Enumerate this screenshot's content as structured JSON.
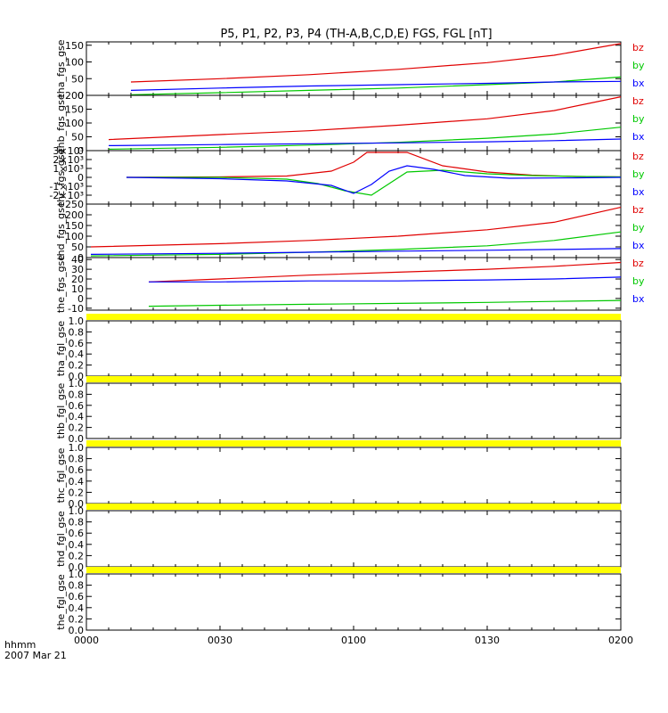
{
  "chart_data": {
    "type": "line",
    "title": "P5, P1, P2, P3, P4 (TH-A,B,C,D,E) FGS, FGL [nT]",
    "x_axis": {
      "range_minutes": [
        0,
        120
      ],
      "ticks": [
        {
          "value": 0,
          "label": "0000"
        },
        {
          "value": 30,
          "label": "0030"
        },
        {
          "value": 60,
          "label": "0100"
        },
        {
          "value": 90,
          "label": "0130"
        },
        {
          "value": 120,
          "label": "0200"
        }
      ],
      "format_label": "hhmm",
      "date_label": "2007 Mar 21"
    },
    "colors": {
      "bx": "#0000ff",
      "by": "#00c800",
      "bz": "#e00000",
      "flag": "#ffff00",
      "axis": "#000000"
    },
    "panels": [
      {
        "ylabel": "tha_fgs_gse",
        "ylim": [
          0,
          160
        ],
        "yticks": [
          {
            "value": 0,
            "label": "0"
          },
          {
            "value": 50,
            "label": "50"
          },
          {
            "value": 100,
            "label": "100"
          },
          {
            "value": 150,
            "label": "150"
          }
        ],
        "legend": [
          "bz",
          "by",
          "bx"
        ],
        "series": [
          {
            "name": "bz",
            "x": [
              10,
              30,
              50,
              70,
              90,
              105,
              120
            ],
            "y": [
              40,
              50,
              62,
              78,
              98,
              120,
              155
            ]
          },
          {
            "name": "by",
            "x": [
              10,
              30,
              50,
              70,
              90,
              105,
              120
            ],
            "y": [
              2,
              8,
              15,
              22,
              32,
              40,
              55
            ]
          },
          {
            "name": "bx",
            "x": [
              10,
              30,
              50,
              70,
              90,
              105,
              120
            ],
            "y": [
              15,
              22,
              28,
              32,
              36,
              40,
              42
            ]
          }
        ]
      },
      {
        "ylabel": "thb_fgs_gse",
        "ylim": [
          0,
          200
        ],
        "yticks": [
          {
            "value": 0,
            "label": "0"
          },
          {
            "value": 50,
            "label": "50"
          },
          {
            "value": 100,
            "label": "100"
          },
          {
            "value": 150,
            "label": "150"
          },
          {
            "value": 200,
            "label": "200"
          }
        ],
        "legend": [
          "bz",
          "by",
          "bx"
        ],
        "series": [
          {
            "name": "bz",
            "x": [
              5,
              30,
              50,
              70,
              90,
              105,
              120
            ],
            "y": [
              40,
              58,
              72,
              92,
              115,
              145,
              195
            ]
          },
          {
            "name": "by",
            "x": [
              5,
              30,
              50,
              70,
              90,
              105,
              120
            ],
            "y": [
              5,
              12,
              20,
              30,
              45,
              60,
              85
            ]
          },
          {
            "name": "bx",
            "x": [
              5,
              30,
              50,
              70,
              90,
              105,
              120
            ],
            "y": [
              18,
              22,
              25,
              28,
              32,
              36,
              42
            ]
          }
        ]
      },
      {
        "ylabel": "thc_fgs_gse",
        "ylim": [
          -3000,
          3000
        ],
        "yticks": [
          {
            "value": -2000,
            "label": "-2×10³"
          },
          {
            "value": -1000,
            "label": "-1×10³"
          },
          {
            "value": 0,
            "label": "0"
          },
          {
            "value": 1000,
            "label": "1×10³"
          },
          {
            "value": 2000,
            "label": "2×10³"
          },
          {
            "value": 3000,
            "label": "3×10³"
          }
        ],
        "legend": [
          "bz",
          "by",
          "bx"
        ],
        "series": [
          {
            "name": "bz",
            "x": [
              9,
              30,
              45,
              55,
              60,
              63,
              72,
              80,
              90,
              100,
              110,
              120
            ],
            "y": [
              0,
              50,
              150,
              700,
              1700,
              2800,
              2800,
              1300,
              600,
              250,
              100,
              50
            ]
          },
          {
            "name": "by",
            "x": [
              9,
              30,
              45,
              52,
              58,
              64,
              68,
              72,
              80,
              90,
              100,
              110,
              120
            ],
            "y": [
              0,
              0,
              -200,
              -700,
              -1500,
              -2000,
              -700,
              600,
              800,
              400,
              200,
              100,
              50
            ]
          },
          {
            "name": "bx",
            "x": [
              9,
              30,
              45,
              55,
              60,
              64,
              68,
              72,
              78,
              85,
              95,
              110,
              120
            ],
            "y": [
              0,
              -150,
              -400,
              -900,
              -1800,
              -800,
              700,
              1300,
              900,
              200,
              -100,
              -50,
              0
            ]
          }
        ]
      },
      {
        "ylabel": "thd_fgs_gse",
        "ylim": [
          0,
          250
        ],
        "yticks": [
          {
            "value": 0,
            "label": "0"
          },
          {
            "value": 50,
            "label": "50"
          },
          {
            "value": 100,
            "label": "100"
          },
          {
            "value": 150,
            "label": "150"
          },
          {
            "value": 200,
            "label": "200"
          },
          {
            "value": 250,
            "label": "250"
          }
        ],
        "legend": [
          "bz",
          "by",
          "bx"
        ],
        "series": [
          {
            "name": "bz",
            "x": [
              1,
              30,
              50,
              70,
              90,
              105,
              120
            ],
            "y": [
              50,
              65,
              80,
              100,
              130,
              165,
              235
            ]
          },
          {
            "name": "by",
            "x": [
              1,
              30,
              50,
              70,
              90,
              105,
              120
            ],
            "y": [
              8,
              15,
              25,
              38,
              55,
              80,
              120
            ]
          },
          {
            "name": "bx",
            "x": [
              1,
              30,
              50,
              70,
              90,
              105,
              120
            ],
            "y": [
              15,
              20,
              25,
              30,
              34,
              38,
              42
            ]
          }
        ]
      },
      {
        "ylabel": "the_fgs_gse",
        "ylim": [
          -12,
          42
        ],
        "yticks": [
          {
            "value": -10,
            "label": "-10"
          },
          {
            "value": 0,
            "label": "0"
          },
          {
            "value": 10,
            "label": "10"
          },
          {
            "value": 20,
            "label": "20"
          },
          {
            "value": 30,
            "label": "30"
          },
          {
            "value": 40,
            "label": "40"
          }
        ],
        "legend": [
          "bz",
          "by",
          "bx"
        ],
        "series": [
          {
            "name": "bz",
            "x": [
              14,
              30,
              50,
              70,
              90,
              105,
              120
            ],
            "y": [
              17,
              20,
              24,
              27,
              30,
              33,
              37
            ]
          },
          {
            "name": "by",
            "x": [
              14,
              30,
              50,
              70,
              90,
              105,
              120
            ],
            "y": [
              -8,
              -7,
              -6,
              -5,
              -4,
              -3,
              -2
            ]
          },
          {
            "name": "bx",
            "x": [
              14,
              30,
              50,
              70,
              90,
              105,
              120
            ],
            "y": [
              17,
              17,
              18,
              18,
              19,
              20,
              22
            ]
          }
        ]
      },
      {
        "ylabel": "tha_fgl_gse",
        "ylim": [
          0,
          1
        ],
        "yticks": [
          {
            "value": 0,
            "label": "0.0"
          },
          {
            "value": 0.2,
            "label": "0.2"
          },
          {
            "value": 0.4,
            "label": "0.4"
          },
          {
            "value": 0.6,
            "label": "0.6"
          },
          {
            "value": 0.8,
            "label": "0.8"
          },
          {
            "value": 1.0,
            "label": "1.0"
          }
        ],
        "flag": "bottom",
        "series": []
      },
      {
        "ylabel": "thb_fgl_gse",
        "ylim": [
          0,
          1
        ],
        "yticks": [
          {
            "value": 0,
            "label": "0.0"
          },
          {
            "value": 0.2,
            "label": "0.2"
          },
          {
            "value": 0.4,
            "label": "0.4"
          },
          {
            "value": 0.6,
            "label": "0.6"
          },
          {
            "value": 0.8,
            "label": "0.8"
          },
          {
            "value": 1.0,
            "label": "1.0"
          }
        ],
        "flag": "bottom",
        "series": []
      },
      {
        "ylabel": "thc_fgl_gse",
        "ylim": [
          0,
          1
        ],
        "yticks": [
          {
            "value": 0,
            "label": "0.0"
          },
          {
            "value": 0.2,
            "label": "0.2"
          },
          {
            "value": 0.4,
            "label": "0.4"
          },
          {
            "value": 0.6,
            "label": "0.6"
          },
          {
            "value": 0.8,
            "label": "0.8"
          },
          {
            "value": 1.0,
            "label": "1.0"
          }
        ],
        "flag": "bottom",
        "series": []
      },
      {
        "ylabel": "thd_fgl_gse",
        "ylim": [
          0,
          1
        ],
        "yticks": [
          {
            "value": 0,
            "label": "0.0"
          },
          {
            "value": 0.2,
            "label": "0.2"
          },
          {
            "value": 0.4,
            "label": "0.4"
          },
          {
            "value": 0.6,
            "label": "0.6"
          },
          {
            "value": 0.8,
            "label": "0.8"
          },
          {
            "value": 1.0,
            "label": "1.0"
          }
        ],
        "flag": "bottom",
        "series": []
      },
      {
        "ylabel": "the_fgl_gse",
        "ylim": [
          0,
          1
        ],
        "yticks": [
          {
            "value": 0,
            "label": "0.0"
          },
          {
            "value": 0.2,
            "label": "0.2"
          },
          {
            "value": 0.4,
            "label": "0.4"
          },
          {
            "value": 0.6,
            "label": "0.6"
          },
          {
            "value": 0.8,
            "label": "0.8"
          },
          {
            "value": 1.0,
            "label": "1.0"
          }
        ],
        "flag": "bottom",
        "series": []
      }
    ]
  }
}
